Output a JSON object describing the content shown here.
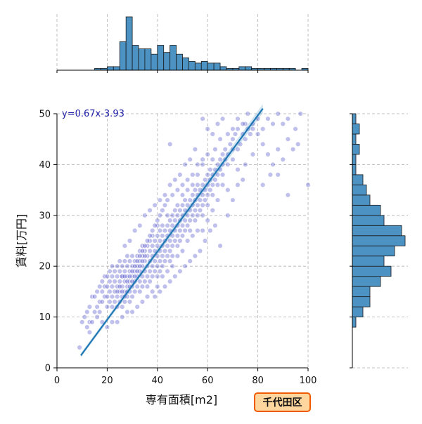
{
  "chart_data": {
    "type": "scatter",
    "title": "",
    "xlabel": "専有面積[m2]",
    "ylabel": "賃料[万円]",
    "xlim": [
      0,
      100
    ],
    "ylim": [
      0,
      50
    ],
    "x_ticks": [
      "0",
      "20",
      "40",
      "60",
      "80",
      "100"
    ],
    "y_ticks": [
      "0",
      "10",
      "20",
      "30",
      "40",
      "50"
    ],
    "grid": true,
    "regression": {
      "label": "y=0.67x-3.93",
      "slope": 0.67,
      "intercept": -3.93,
      "x_range": [
        9.5,
        82
      ]
    },
    "point_color": "#4a4ac8",
    "line_color": "#1f77b4",
    "hist_color": "#4c92c3",
    "top_histogram": {
      "bin_edges": [
        0,
        2.5,
        5,
        7.5,
        10,
        12.5,
        15,
        17.5,
        20,
        22.5,
        25,
        27.5,
        30,
        32.5,
        35,
        37.5,
        40,
        42.5,
        45,
        47.5,
        50,
        52.5,
        55,
        57.5,
        60,
        62.5,
        65,
        67.5,
        70,
        72.5,
        75,
        77.5,
        80,
        82.5,
        85,
        87.5,
        90,
        92.5,
        95,
        97.5,
        100
      ],
      "counts": [
        0,
        0,
        0,
        0,
        0,
        0,
        1,
        1,
        2,
        2,
        16,
        30,
        14,
        12,
        12,
        9,
        14,
        10,
        14,
        9,
        7,
        5,
        4,
        5,
        4,
        4,
        2,
        1,
        1,
        2,
        2,
        1,
        1,
        1,
        1,
        1,
        1,
        1,
        0,
        1
      ]
    },
    "right_histogram": {
      "bin_edges": [
        0,
        2,
        4,
        6,
        8,
        10,
        12,
        14,
        16,
        18,
        20,
        22,
        24,
        26,
        28,
        30,
        32,
        34,
        36,
        38,
        40,
        42,
        44,
        46,
        48,
        50
      ],
      "counts": [
        0,
        0,
        0,
        0,
        1,
        3,
        5,
        5,
        8,
        11,
        9,
        12,
        15,
        14,
        9,
        8,
        5,
        4,
        3,
        1,
        1,
        2,
        1,
        2,
        1
      ]
    },
    "points": [
      [
        9,
        4
      ],
      [
        10,
        9
      ],
      [
        11,
        10
      ],
      [
        12,
        11
      ],
      [
        13,
        12
      ],
      [
        13,
        9
      ],
      [
        14,
        14
      ],
      [
        15,
        11
      ],
      [
        15,
        14
      ],
      [
        16,
        12
      ],
      [
        16,
        15
      ],
      [
        17,
        13
      ],
      [
        17,
        16
      ],
      [
        18,
        13
      ],
      [
        18,
        15
      ],
      [
        18,
        17
      ],
      [
        19,
        14
      ],
      [
        19,
        16
      ],
      [
        19,
        18
      ],
      [
        20,
        12
      ],
      [
        20,
        14
      ],
      [
        20,
        16
      ],
      [
        20,
        18
      ],
      [
        21,
        13
      ],
      [
        21,
        15
      ],
      [
        21,
        17
      ],
      [
        21,
        19
      ],
      [
        22,
        12
      ],
      [
        22,
        14
      ],
      [
        22,
        16
      ],
      [
        22,
        18
      ],
      [
        22,
        20
      ],
      [
        23,
        13
      ],
      [
        23,
        15
      ],
      [
        23,
        17
      ],
      [
        23,
        19
      ],
      [
        24,
        12
      ],
      [
        24,
        14
      ],
      [
        24,
        16
      ],
      [
        24,
        18
      ],
      [
        24,
        20
      ],
      [
        25,
        13
      ],
      [
        25,
        15
      ],
      [
        25,
        17
      ],
      [
        25,
        19
      ],
      [
        25,
        21
      ],
      [
        26,
        12
      ],
      [
        26,
        14
      ],
      [
        26,
        16
      ],
      [
        26,
        18
      ],
      [
        26,
        20
      ],
      [
        27,
        13
      ],
      [
        27,
        15
      ],
      [
        27,
        17
      ],
      [
        27,
        19
      ],
      [
        27,
        21
      ],
      [
        28,
        14
      ],
      [
        28,
        16
      ],
      [
        28,
        18
      ],
      [
        28,
        20
      ],
      [
        28,
        22
      ],
      [
        29,
        13
      ],
      [
        29,
        15
      ],
      [
        29,
        17
      ],
      [
        29,
        19
      ],
      [
        29,
        21
      ],
      [
        30,
        14
      ],
      [
        30,
        16
      ],
      [
        30,
        18
      ],
      [
        30,
        20
      ],
      [
        30,
        22
      ],
      [
        31,
        15
      ],
      [
        31,
        17
      ],
      [
        31,
        19
      ],
      [
        31,
        21
      ],
      [
        32,
        16
      ],
      [
        32,
        18
      ],
      [
        32,
        20
      ],
      [
        32,
        22
      ],
      [
        33,
        15
      ],
      [
        33,
        17
      ],
      [
        33,
        19
      ],
      [
        33,
        21
      ],
      [
        33,
        23
      ],
      [
        34,
        16
      ],
      [
        34,
        18
      ],
      [
        34,
        20
      ],
      [
        34,
        22
      ],
      [
        34,
        24
      ],
      [
        35,
        17
      ],
      [
        35,
        19
      ],
      [
        35,
        21
      ],
      [
        35,
        23
      ],
      [
        36,
        16
      ],
      [
        36,
        18
      ],
      [
        36,
        20
      ],
      [
        36,
        22
      ],
      [
        36,
        24
      ],
      [
        37,
        17
      ],
      [
        37,
        19
      ],
      [
        37,
        21
      ],
      [
        37,
        23
      ],
      [
        37,
        25
      ],
      [
        38,
        18
      ],
      [
        38,
        20
      ],
      [
        38,
        22
      ],
      [
        38,
        24
      ],
      [
        38,
        26
      ],
      [
        39,
        19
      ],
      [
        39,
        21
      ],
      [
        39,
        23
      ],
      [
        39,
        25
      ],
      [
        40,
        18
      ],
      [
        40,
        20
      ],
      [
        40,
        22
      ],
      [
        40,
        24
      ],
      [
        40,
        26
      ],
      [
        40,
        28
      ],
      [
        41,
        19
      ],
      [
        41,
        21
      ],
      [
        41,
        23
      ],
      [
        41,
        25
      ],
      [
        41,
        27
      ],
      [
        42,
        20
      ],
      [
        42,
        22
      ],
      [
        42,
        24
      ],
      [
        42,
        26
      ],
      [
        42,
        28
      ],
      [
        43,
        21
      ],
      [
        43,
        23
      ],
      [
        43,
        25
      ],
      [
        43,
        27
      ],
      [
        44,
        22
      ],
      [
        44,
        24
      ],
      [
        44,
        26
      ],
      [
        44,
        28
      ],
      [
        44,
        30
      ],
      [
        45,
        21
      ],
      [
        45,
        23
      ],
      [
        45,
        25
      ],
      [
        45,
        27
      ],
      [
        45,
        29
      ],
      [
        46,
        22
      ],
      [
        46,
        24
      ],
      [
        46,
        26
      ],
      [
        46,
        28
      ],
      [
        46,
        30
      ],
      [
        47,
        25
      ],
      [
        47,
        27
      ],
      [
        47,
        29
      ],
      [
        47,
        31
      ],
      [
        48,
        24
      ],
      [
        48,
        26
      ],
      [
        48,
        28
      ],
      [
        48,
        30
      ],
      [
        48,
        32
      ],
      [
        49,
        25
      ],
      [
        49,
        27
      ],
      [
        49,
        29
      ],
      [
        49,
        31
      ],
      [
        50,
        26
      ],
      [
        50,
        28
      ],
      [
        50,
        30
      ],
      [
        50,
        32
      ],
      [
        50,
        34
      ],
      [
        51,
        27
      ],
      [
        51,
        29
      ],
      [
        51,
        31
      ],
      [
        51,
        33
      ],
      [
        52,
        28
      ],
      [
        52,
        30
      ],
      [
        52,
        32
      ],
      [
        52,
        35
      ],
      [
        53,
        27
      ],
      [
        53,
        29
      ],
      [
        53,
        31
      ],
      [
        53,
        33
      ],
      [
        54,
        30
      ],
      [
        54,
        32
      ],
      [
        54,
        34
      ],
      [
        54,
        36
      ],
      [
        55,
        29
      ],
      [
        55,
        31
      ],
      [
        55,
        33
      ],
      [
        55,
        35
      ],
      [
        56,
        30
      ],
      [
        56,
        32
      ],
      [
        56,
        34
      ],
      [
        56,
        36
      ],
      [
        56,
        38
      ],
      [
        57,
        31
      ],
      [
        57,
        33
      ],
      [
        57,
        35
      ],
      [
        58,
        30
      ],
      [
        58,
        32
      ],
      [
        58,
        34
      ],
      [
        58,
        36
      ],
      [
        58,
        40
      ],
      [
        59,
        33
      ],
      [
        59,
        35
      ],
      [
        59,
        37
      ],
      [
        60,
        32
      ],
      [
        60,
        34
      ],
      [
        60,
        36
      ],
      [
        60,
        38
      ],
      [
        60,
        42
      ],
      [
        61,
        35
      ],
      [
        61,
        37
      ],
      [
        61,
        39
      ],
      [
        62,
        34
      ],
      [
        62,
        36
      ],
      [
        62,
        38
      ],
      [
        62,
        41
      ],
      [
        63,
        37
      ],
      [
        63,
        39
      ],
      [
        63,
        43
      ],
      [
        64,
        36
      ],
      [
        64,
        38
      ],
      [
        64,
        40
      ],
      [
        65,
        39
      ],
      [
        65,
        41
      ],
      [
        65,
        45
      ],
      [
        66,
        38
      ],
      [
        66,
        40
      ],
      [
        66,
        42
      ],
      [
        67,
        41
      ],
      [
        67,
        43
      ],
      [
        68,
        40
      ],
      [
        68,
        42
      ],
      [
        68,
        46
      ],
      [
        69,
        44
      ],
      [
        70,
        41
      ],
      [
        70,
        43
      ],
      [
        70,
        45
      ],
      [
        71,
        46
      ],
      [
        72,
        43
      ],
      [
        72,
        47
      ],
      [
        73,
        44
      ],
      [
        74,
        46
      ],
      [
        75,
        45
      ],
      [
        75,
        48
      ],
      [
        76,
        47
      ],
      [
        77,
        46
      ],
      [
        78,
        48
      ],
      [
        80,
        49
      ],
      [
        82,
        47
      ],
      [
        84,
        49
      ],
      [
        86,
        48
      ],
      [
        88,
        50
      ],
      [
        90,
        48
      ],
      [
        92,
        49
      ],
      [
        95,
        47
      ],
      [
        97,
        50
      ],
      [
        58,
        49
      ],
      [
        60,
        47
      ],
      [
        62,
        46
      ],
      [
        64,
        48
      ],
      [
        66,
        49
      ],
      [
        70,
        47
      ],
      [
        72,
        49
      ],
      [
        74,
        48
      ],
      [
        76,
        50
      ],
      [
        78,
        47
      ],
      [
        80,
        46
      ],
      [
        82,
        44
      ],
      [
        84,
        42
      ],
      [
        86,
        40
      ],
      [
        88,
        43
      ],
      [
        90,
        41
      ],
      [
        92,
        45
      ],
      [
        94,
        43
      ],
      [
        96,
        44
      ],
      [
        85,
        38
      ],
      [
        92,
        34
      ],
      [
        100,
        36
      ],
      [
        82,
        36
      ],
      [
        88,
        38
      ],
      [
        75,
        40
      ],
      [
        78,
        42
      ],
      [
        72,
        39
      ],
      [
        74,
        37
      ],
      [
        68,
        35
      ],
      [
        66,
        36
      ],
      [
        64,
        33
      ],
      [
        62,
        31
      ],
      [
        60,
        29
      ],
      [
        58,
        27
      ],
      [
        56,
        27
      ],
      [
        54,
        26
      ],
      [
        52,
        25
      ],
      [
        50,
        23
      ],
      [
        48,
        22
      ],
      [
        46,
        20
      ],
      [
        44,
        19
      ],
      [
        42,
        18
      ],
      [
        40,
        16
      ],
      [
        38,
        15
      ],
      [
        36,
        14
      ],
      [
        34,
        13
      ],
      [
        32,
        12
      ],
      [
        30,
        11
      ],
      [
        28,
        11
      ],
      [
        26,
        10
      ],
      [
        24,
        9
      ],
      [
        22,
        9
      ],
      [
        20,
        8
      ],
      [
        18,
        9
      ],
      [
        17,
        11
      ],
      [
        16,
        10
      ],
      [
        14,
        9
      ],
      [
        13,
        7
      ],
      [
        12,
        8
      ],
      [
        65,
        24
      ],
      [
        68,
        30
      ],
      [
        70,
        33
      ],
      [
        72,
        36
      ],
      [
        63,
        28
      ],
      [
        61,
        27
      ],
      [
        59,
        25
      ],
      [
        57,
        23
      ],
      [
        55,
        22
      ],
      [
        53,
        21
      ],
      [
        51,
        20
      ],
      [
        49,
        19
      ],
      [
        47,
        18
      ],
      [
        45,
        17
      ],
      [
        43,
        16
      ],
      [
        41,
        15
      ],
      [
        39,
        14
      ],
      [
        27,
        24
      ],
      [
        29,
        25
      ],
      [
        31,
        27
      ],
      [
        33,
        28
      ],
      [
        35,
        30
      ],
      [
        37,
        31
      ],
      [
        39,
        32
      ],
      [
        41,
        33
      ],
      [
        43,
        34
      ],
      [
        45,
        36
      ],
      [
        47,
        37
      ],
      [
        49,
        38
      ],
      [
        51,
        40
      ],
      [
        53,
        41
      ],
      [
        55,
        43
      ],
      [
        45,
        44
      ],
      [
        26,
        18
      ],
      [
        27,
        18
      ],
      [
        28,
        17
      ],
      [
        29,
        16
      ],
      [
        30,
        17
      ],
      [
        31,
        18
      ],
      [
        32,
        19
      ],
      [
        33,
        20
      ],
      [
        34,
        21
      ],
      [
        35,
        22
      ],
      [
        24,
        15
      ],
      [
        25,
        16
      ],
      [
        26,
        15
      ],
      [
        27,
        14
      ],
      [
        28,
        15
      ],
      [
        29,
        18
      ],
      [
        30,
        19
      ],
      [
        31,
        20
      ],
      [
        32,
        21
      ],
      [
        33,
        22
      ],
      [
        34,
        23
      ],
      [
        35,
        24
      ],
      [
        36,
        25
      ],
      [
        37,
        26
      ],
      [
        38,
        27
      ],
      [
        39,
        28
      ],
      [
        40,
        29
      ],
      [
        41,
        30
      ],
      [
        42,
        31
      ],
      [
        43,
        32
      ],
      [
        44,
        33
      ],
      [
        46,
        34
      ],
      [
        48,
        35
      ],
      [
        50,
        36
      ],
      [
        52,
        37
      ],
      [
        54,
        38
      ],
      [
        56,
        40
      ],
      [
        58,
        41
      ]
    ]
  },
  "badge": {
    "label": "千代田区",
    "fill": "#ffd69e",
    "border": "#f05a00"
  }
}
